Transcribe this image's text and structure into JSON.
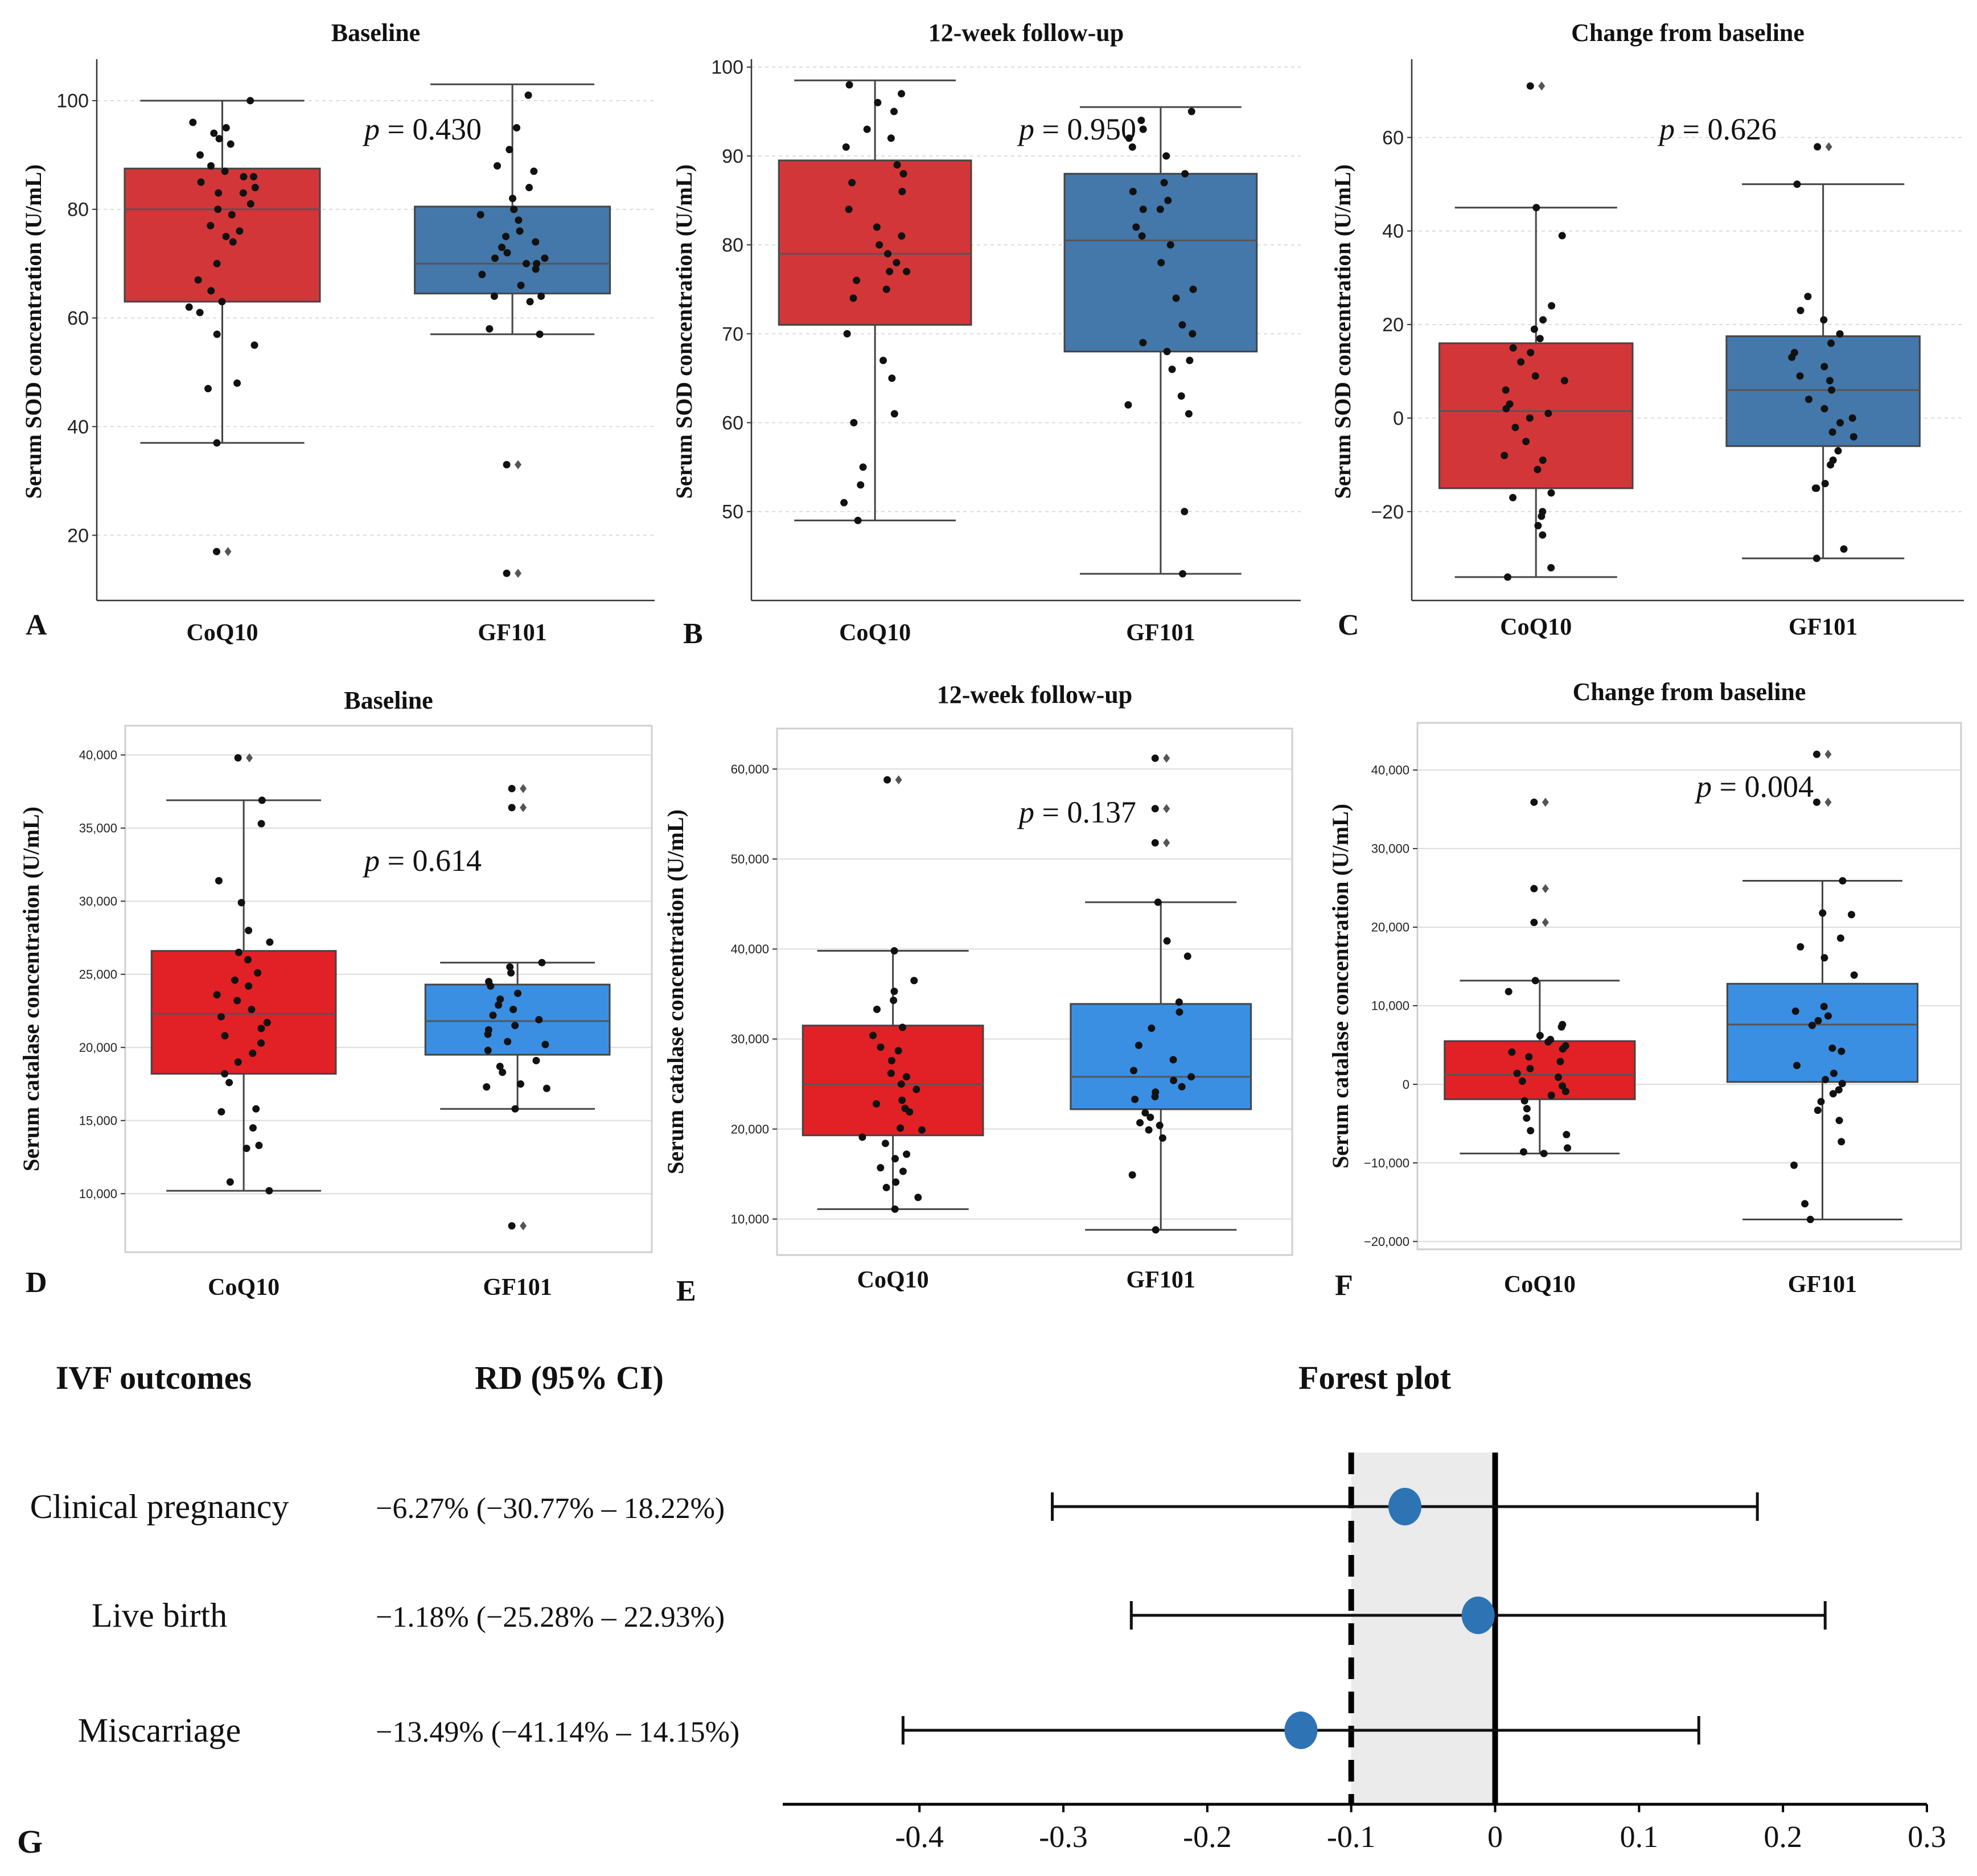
{
  "colors": {
    "red_dark": "#D33638",
    "red_bright": "#E12125",
    "blue_dark": "#4477AA",
    "blue_bright": "#3A8FE2",
    "forest_point": "#2E74B5",
    "shade": "#EBEBEB"
  },
  "chart_data": [
    {
      "panel": "A",
      "type": "box",
      "title": "Baseline",
      "ylabel": "Serum SOD concentration (U/mL)",
      "categories": [
        "CoQ10",
        "GF101"
      ],
      "yticks": [
        20,
        40,
        60,
        80,
        100
      ],
      "ytick_labels": [
        "20",
        "40",
        "60",
        "80",
        "100"
      ],
      "ylim": [
        8,
        107
      ],
      "p_text": "= 0.430",
      "boxes": [
        {
          "q1": 63,
          "median": 80,
          "q3": 87.5,
          "whisker_low": 37,
          "whisker_high": 100
        },
        {
          "q1": 64.5,
          "median": 70,
          "q3": 80.5,
          "whisker_low": 57,
          "whisker_high": 103
        }
      ],
      "points": [
        [
          100,
          96,
          95,
          94,
          93,
          92,
          90,
          88,
          87,
          86,
          86,
          85,
          84,
          83,
          83,
          81,
          80,
          79,
          77,
          76,
          75,
          74,
          70,
          67,
          65,
          63,
          62,
          61,
          57,
          55,
          48,
          47,
          37
        ],
        [
          101,
          95,
          91,
          88,
          87,
          84,
          82,
          80,
          80,
          79,
          78,
          76,
          75,
          74,
          73,
          72,
          71,
          71,
          70,
          70,
          69,
          68,
          66,
          64,
          64,
          63,
          58,
          57
        ]
      ],
      "outliers": [
        [
          17
        ],
        [
          33,
          13
        ]
      ]
    },
    {
      "panel": "B",
      "type": "box",
      "title": "12-week follow-up",
      "ylabel": "Serum SOD concentration (U/mL)",
      "categories": [
        "CoQ10",
        "GF101"
      ],
      "yticks": [
        50,
        60,
        70,
        80,
        90,
        100
      ],
      "ytick_labels": [
        "50",
        "60",
        "70",
        "80",
        "90",
        "100"
      ],
      "ylim": [
        40,
        100.5
      ],
      "p_text": "= 0.950",
      "boxes": [
        {
          "q1": 71,
          "median": 79,
          "q3": 89.5,
          "whisker_low": 49,
          "whisker_high": 98.5
        },
        {
          "q1": 68,
          "median": 80.5,
          "q3": 88,
          "whisker_low": 43,
          "whisker_high": 95.5
        }
      ],
      "points": [
        [
          98,
          97,
          96,
          95,
          93,
          92,
          91,
          89,
          88,
          87,
          86,
          84,
          82,
          81,
          80,
          79,
          78,
          77,
          77,
          76,
          75,
          74,
          70,
          67,
          65,
          61,
          60,
          55,
          53,
          51,
          49
        ],
        [
          95,
          94,
          93,
          92,
          91,
          90,
          88,
          87,
          86,
          85,
          84,
          84,
          82,
          81,
          80,
          78,
          75,
          74,
          71,
          70,
          69,
          68,
          67,
          66,
          63,
          62,
          61,
          50,
          43
        ]
      ],
      "outliers": [
        [],
        []
      ]
    },
    {
      "panel": "C",
      "type": "box",
      "title": "Change from baseline",
      "ylabel": "Serum SOD concentration (U/mL)",
      "categories": [
        "CoQ10",
        "GF101"
      ],
      "yticks": [
        -20,
        0,
        20,
        40,
        60
      ],
      "ytick_labels": [
        "−20",
        "0",
        "20",
        "40",
        "60"
      ],
      "ylim": [
        -39,
        76
      ],
      "p_text": "= 0.626",
      "boxes": [
        {
          "q1": -15,
          "median": 1.5,
          "q3": 16,
          "whisker_low": -34,
          "whisker_high": 45
        },
        {
          "q1": -6,
          "median": 6,
          "q3": 17.5,
          "whisker_low": -30,
          "whisker_high": 50
        }
      ],
      "points": [
        [
          45,
          39,
          24,
          21,
          19,
          17,
          15,
          14,
          12,
          9,
          8,
          6,
          3,
          2,
          1,
          0,
          -2,
          -5,
          -8,
          -9,
          -11,
          -16,
          -17,
          -20,
          -21,
          -23,
          -25,
          -32,
          -34
        ],
        [
          50,
          26,
          23,
          21,
          18,
          16,
          14,
          13,
          11,
          9,
          8,
          6,
          4,
          2,
          0,
          -1,
          -3,
          -4,
          -7,
          -9,
          -10,
          -14,
          -15,
          -15,
          -28,
          -30
        ]
      ],
      "outliers": [
        [
          71
        ],
        [
          58
        ]
      ]
    },
    {
      "panel": "D",
      "type": "box",
      "title": "Baseline",
      "ylabel": "Serum catalase concentration (U/mL)",
      "categories": [
        "CoQ10",
        "GF101"
      ],
      "yticks": [
        10000,
        15000,
        20000,
        25000,
        30000,
        35000,
        40000
      ],
      "ytick_labels": [
        "10,000",
        "15,000",
        "20,000",
        "25,000",
        "30,000",
        "35,000",
        "40,000"
      ],
      "ylim": [
        6000,
        42000
      ],
      "p_text": "= 0.614",
      "boxes": [
        {
          "q1": 18200,
          "median": 22300,
          "q3": 26600,
          "whisker_low": 10200,
          "whisker_high": 36900
        },
        {
          "q1": 19500,
          "median": 21800,
          "q3": 24300,
          "whisker_low": 15800,
          "whisker_high": 25800
        }
      ],
      "points": [
        [
          36900,
          35300,
          31400,
          29900,
          28000,
          27200,
          26500,
          26000,
          25100,
          24600,
          24200,
          23600,
          23200,
          22600,
          22100,
          21700,
          21300,
          20800,
          20300,
          19600,
          19000,
          18200,
          17600,
          15800,
          15600,
          14500,
          13300,
          13100,
          10800,
          10200
        ],
        [
          25800,
          25500,
          25100,
          24500,
          24200,
          23700,
          23300,
          22900,
          22600,
          22200,
          21900,
          21500,
          21200,
          20900,
          20400,
          20200,
          19800,
          19100,
          18700,
          18300,
          17500,
          17300,
          17200,
          15800
        ]
      ],
      "outliers": [
        [
          39800
        ],
        [
          37700,
          36400,
          7800
        ]
      ]
    },
    {
      "panel": "E",
      "type": "box",
      "title": "12-week follow-up",
      "ylabel": "Serum catalase concentration (U/mL)",
      "categories": [
        "CoQ10",
        "GF101"
      ],
      "yticks": [
        10000,
        20000,
        30000,
        40000,
        50000,
        60000
      ],
      "ytick_labels": [
        "10,000",
        "20,000",
        "30,000",
        "40,000",
        "50,000",
        "60,000"
      ],
      "ylim": [
        6000,
        64500
      ],
      "p_text": "= 0.137",
      "boxes": [
        {
          "q1": 19300,
          "median": 25000,
          "q3": 31500,
          "whisker_low": 11100,
          "whisker_high": 39800
        },
        {
          "q1": 22200,
          "median": 25800,
          "q3": 33900,
          "whisker_low": 8800,
          "whisker_high": 45200
        }
      ],
      "points": [
        [
          39800,
          36500,
          35300,
          34300,
          33300,
          31300,
          30400,
          29100,
          28700,
          27600,
          26200,
          25800,
          25000,
          24400,
          23200,
          22800,
          22300,
          21900,
          20100,
          19900,
          19100,
          18400,
          17200,
          16700,
          15700,
          15300,
          14100,
          13500,
          12400,
          11100
        ],
        [
          45200,
          40900,
          39200,
          34100,
          33000,
          31200,
          29300,
          27700,
          26500,
          25800,
          25400,
          24700,
          24100,
          23600,
          23300,
          21800,
          21300,
          20700,
          20400,
          19900,
          19000,
          14900,
          8800
        ]
      ],
      "outliers": [
        [
          58800
        ],
        [
          61200,
          55600,
          51800
        ]
      ]
    },
    {
      "panel": "F",
      "type": "box",
      "title": "Change from baseline",
      "ylabel": "Serum catalase concentration (U/mL)",
      "categories": [
        "CoQ10",
        "GF101"
      ],
      "yticks": [
        -20000,
        -10000,
        0,
        10000,
        20000,
        30000,
        40000
      ],
      "ytick_labels": [
        "−20,000",
        "−10,000",
        "0",
        "10,000",
        "20,000",
        "30,000",
        "40,000"
      ],
      "ylim": [
        -21000,
        46000
      ],
      "p_text": "= 0.004",
      "boxes": [
        {
          "q1": -1900,
          "median": 1200,
          "q3": 5500,
          "whisker_low": -8800,
          "whisker_high": 13200
        },
        {
          "q1": 300,
          "median": 7600,
          "q3": 12800,
          "whisker_low": -17200,
          "whisker_high": 25900
        }
      ],
      "points": [
        [
          13200,
          11800,
          7600,
          7300,
          6200,
          5700,
          5400,
          4900,
          4500,
          4100,
          3500,
          2900,
          2000,
          1400,
          900,
          400,
          -200,
          -900,
          -1400,
          -2100,
          -3100,
          -4300,
          -5900,
          -6400,
          -8100,
          -8600,
          -8800
        ],
        [
          25900,
          21800,
          21600,
          18600,
          17500,
          16100,
          13900,
          9900,
          9300,
          8700,
          8100,
          7500,
          4600,
          4200,
          2400,
          1400,
          600,
          100,
          -700,
          -1200,
          -2200,
          -3300,
          -4600,
          -7300,
          -10300,
          -15200,
          -17200
        ]
      ],
      "outliers": [
        [
          35900,
          24900,
          20600
        ],
        [
          42000,
          35900
        ]
      ]
    },
    {
      "panel": "G",
      "type": "forest",
      "title": "Forest plot",
      "col1_header": "IVF outcomes",
      "col2_header": "RD (95% CI)",
      "rows": [
        {
          "label": "Clinical  pregnancy",
          "text": "−6.27% (−30.77% – 18.22%)",
          "est": -0.0627,
          "lo": -0.3077,
          "hi": 0.1822
        },
        {
          "label": "Live birth",
          "text": "−1.18% (−25.28% – 22.93%)",
          "est": -0.0118,
          "lo": -0.2528,
          "hi": 0.2293
        },
        {
          "label": "Miscarriage",
          "text": "−13.49% (−41.14% – 14.15%)",
          "est": -0.1349,
          "lo": -0.4114,
          "hi": 0.1415
        }
      ],
      "xticks": [
        -0.4,
        -0.3,
        -0.2,
        -0.1,
        0,
        0.1,
        0.2,
        0.3
      ],
      "xtick_labels": [
        "-0.4",
        "-0.3",
        "-0.2",
        "-0.1",
        "0",
        "0.1",
        "0.2",
        "0.3"
      ],
      "xlim": [
        -0.495,
        0.3
      ],
      "margin_line": -0.1,
      "null_line": 0,
      "shade_range": [
        -0.1,
        0
      ]
    }
  ]
}
